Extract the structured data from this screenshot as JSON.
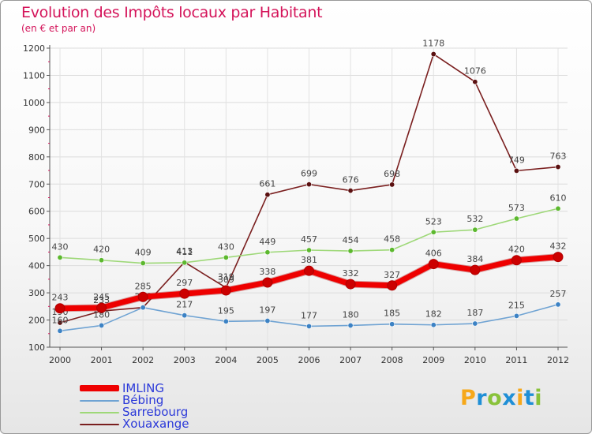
{
  "title": "Evolution des Impôts locaux par Habitant",
  "subtitle": "(en € et par an)",
  "logo": {
    "letters": [
      "P",
      "r",
      "o",
      "x",
      "i",
      "t",
      "i"
    ],
    "colors": [
      "#f6a81a",
      "#1f8fd6",
      "#89c23a",
      "#1f8fd6",
      "#f6a81a",
      "#1f8fd6",
      "#89c23a"
    ]
  },
  "chart_data": {
    "type": "line",
    "title": "Evolution des Impôts locaux par Habitant",
    "subtitle": "(en € et par an)",
    "xlabel": "",
    "ylabel": "",
    "ylim": [
      100,
      1200
    ],
    "yticks": [
      "100",
      "200",
      "300",
      "400",
      "500",
      "600",
      "700",
      "800",
      "900",
      "1000",
      "1100",
      "1200"
    ],
    "categories": [
      "2000",
      "2001",
      "2002",
      "2003",
      "2004",
      "2005",
      "2006",
      "2007",
      "2008",
      "2009",
      "2010",
      "2011",
      "2012"
    ],
    "legend_position": "bottom-left",
    "series": [
      {
        "name": "Xouaxange",
        "color": "#7a1f1f",
        "marker": "#5a1010",
        "values": [
          190,
          233,
          246,
          413,
          319,
          661,
          699,
          676,
          698,
          1178,
          1076,
          749,
          763
        ],
        "labels": [
          "190",
          "233",
          "246",
          "413",
          "319",
          "661",
          "699",
          "676",
          "698",
          "1178",
          "1076",
          "749",
          "763"
        ]
      },
      {
        "name": "Sarrebourg",
        "color": "#9ed878",
        "marker": "#5cb82e",
        "values": [
          430,
          420,
          409,
          411,
          430,
          449,
          457,
          454,
          458,
          523,
          532,
          573,
          610
        ],
        "labels": [
          "430",
          "420",
          "409",
          "411",
          "430",
          "449",
          "457",
          "454",
          "458",
          "523",
          "532",
          "573",
          "610"
        ]
      },
      {
        "name": "Bébing",
        "color": "#6fa3d3",
        "marker": "#3c82c4",
        "values": [
          160,
          180,
          246,
          217,
          195,
          197,
          177,
          180,
          185,
          182,
          187,
          215,
          257
        ],
        "labels": [
          "160",
          "180",
          "246",
          "217",
          "195",
          "197",
          "177",
          "180",
          "185",
          "182",
          "187",
          "215",
          "257"
        ]
      },
      {
        "name": "IMLING",
        "color": "#ee0000",
        "marker": "#cc0000",
        "values": [
          243,
          245,
          285,
          297,
          309,
          338,
          381,
          332,
          327,
          406,
          384,
          420,
          432
        ],
        "labels": [
          "243",
          "245",
          "285",
          "297",
          "309",
          "338",
          "381",
          "332",
          "327",
          "406",
          "384",
          "420",
          "432"
        ]
      }
    ],
    "legend": [
      "IMLING",
      "Bébing",
      "Sarrebourg",
      "Xouaxange"
    ]
  }
}
